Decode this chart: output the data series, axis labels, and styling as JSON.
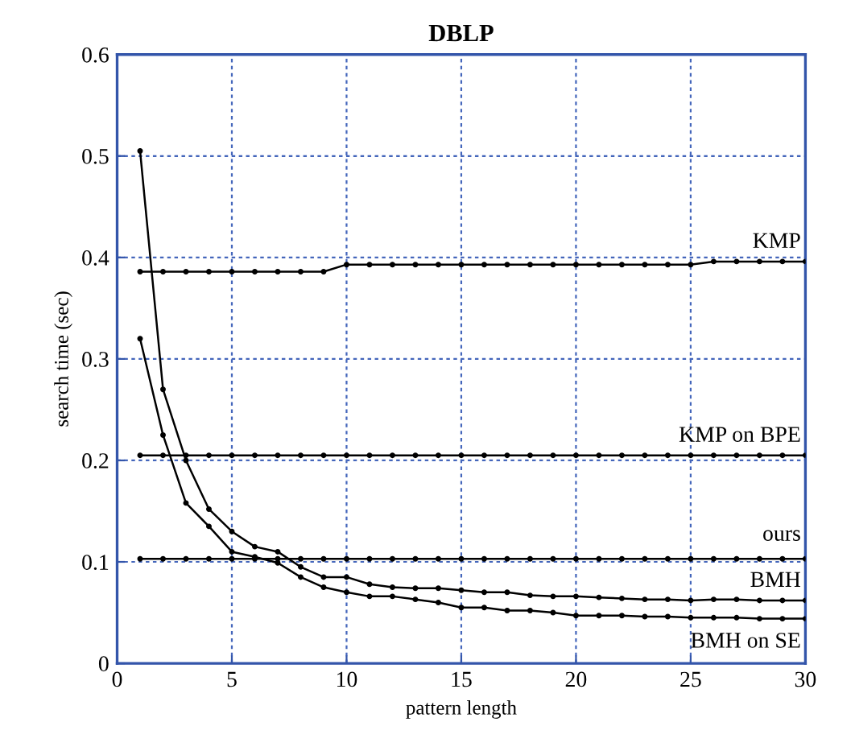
{
  "chart_data": {
    "type": "line",
    "title": "DBLP",
    "xlabel": "pattern length",
    "ylabel": "search time (sec)",
    "x": [
      1,
      2,
      3,
      4,
      5,
      6,
      7,
      8,
      9,
      10,
      11,
      12,
      13,
      14,
      15,
      16,
      17,
      18,
      19,
      20,
      21,
      22,
      23,
      24,
      25,
      26,
      27,
      28,
      29,
      30
    ],
    "series": [
      {
        "name": "KMP",
        "color": "#000000",
        "values": [
          0.386,
          0.386,
          0.386,
          0.386,
          0.386,
          0.386,
          0.386,
          0.386,
          0.386,
          0.393,
          0.393,
          0.393,
          0.393,
          0.393,
          0.393,
          0.393,
          0.393,
          0.393,
          0.393,
          0.393,
          0.393,
          0.393,
          0.393,
          0.393,
          0.393,
          0.396,
          0.396,
          0.396,
          0.396,
          0.396
        ]
      },
      {
        "name": "KMP on BPE",
        "color": "#000000",
        "values": [
          0.205,
          0.205,
          0.205,
          0.205,
          0.205,
          0.205,
          0.205,
          0.205,
          0.205,
          0.205,
          0.205,
          0.205,
          0.205,
          0.205,
          0.205,
          0.205,
          0.205,
          0.205,
          0.205,
          0.205,
          0.205,
          0.205,
          0.205,
          0.205,
          0.205,
          0.205,
          0.205,
          0.205,
          0.205,
          0.205
        ]
      },
      {
        "name": "ours",
        "color": "#000000",
        "values": [
          0.103,
          0.103,
          0.103,
          0.103,
          0.103,
          0.103,
          0.103,
          0.103,
          0.103,
          0.103,
          0.103,
          0.103,
          0.103,
          0.103,
          0.103,
          0.103,
          0.103,
          0.103,
          0.103,
          0.103,
          0.103,
          0.103,
          0.103,
          0.103,
          0.103,
          0.103,
          0.103,
          0.103,
          0.103,
          0.103
        ]
      },
      {
        "name": "BMH",
        "color": "#000000",
        "values": [
          0.505,
          0.27,
          0.2,
          0.152,
          0.13,
          0.115,
          0.11,
          0.095,
          0.085,
          0.085,
          0.078,
          0.075,
          0.074,
          0.074,
          0.072,
          0.07,
          0.07,
          0.067,
          0.066,
          0.066,
          0.065,
          0.064,
          0.063,
          0.063,
          0.062,
          0.063,
          0.063,
          0.062,
          0.062,
          0.062
        ]
      },
      {
        "name": "BMH on SE",
        "color": "#000000",
        "values": [
          0.32,
          0.225,
          0.158,
          0.135,
          0.11,
          0.105,
          0.099,
          0.085,
          0.075,
          0.07,
          0.066,
          0.066,
          0.063,
          0.06,
          0.055,
          0.055,
          0.052,
          0.052,
          0.05,
          0.047,
          0.047,
          0.047,
          0.046,
          0.046,
          0.045,
          0.045,
          0.045,
          0.044,
          0.044,
          0.044
        ]
      }
    ],
    "xlim": [
      0,
      30
    ],
    "ylim": [
      0,
      0.6
    ],
    "xticks": [
      0,
      5,
      10,
      15,
      20,
      25,
      30
    ],
    "yticks": [
      0,
      0.1,
      0.2,
      0.3,
      0.4,
      0.5,
      0.6
    ],
    "grid": true,
    "legend": false,
    "marker": "circle",
    "line_style": "solid"
  }
}
